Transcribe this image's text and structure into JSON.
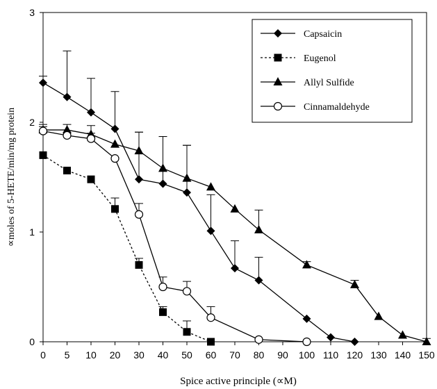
{
  "chart_data": {
    "type": "line",
    "title": "",
    "xlabel": "Spice active principle (∝M)",
    "ylabel": "∝moles of 5-HETE/min/mg protein",
    "xlim": [
      0,
      150
    ],
    "ylim": [
      0,
      3
    ],
    "x_ticks": [
      "0",
      "5",
      "10",
      "20",
      "30",
      "40",
      "50",
      "60",
      "70",
      "80",
      "90",
      "100",
      "110",
      "120",
      "130",
      "140",
      "150"
    ],
    "y_ticks": [
      "0",
      "1",
      "2",
      "3"
    ],
    "legend_position": "top-right",
    "grid": false,
    "series": [
      {
        "name": "Capsaicin",
        "marker": "diamond",
        "line": "solid",
        "points": [
          {
            "x": 0,
            "y": 2.36,
            "err": 0.06
          },
          {
            "x": 5,
            "y": 2.23,
            "err": 0.42
          },
          {
            "x": 10,
            "y": 2.09,
            "err": 0.31
          },
          {
            "x": 20,
            "y": 1.94,
            "err": 0.34
          },
          {
            "x": 30,
            "y": 1.48,
            "err": 0.43
          },
          {
            "x": 40,
            "y": 1.44,
            "err": 0.43
          },
          {
            "x": 50,
            "y": 1.36,
            "err": 0.43
          },
          {
            "x": 60,
            "y": 1.01,
            "err": 0.33
          },
          {
            "x": 70,
            "y": 0.67,
            "err": 0.25
          },
          {
            "x": 80,
            "y": 0.56,
            "err": 0.21
          },
          {
            "x": 100,
            "y": 0.21,
            "err": 0
          },
          {
            "x": 110,
            "y": 0.04,
            "err": 0
          },
          {
            "x": 120,
            "y": 0.0,
            "err": 0
          }
        ]
      },
      {
        "name": "Eugenol",
        "marker": "square",
        "line": "dotted",
        "points": [
          {
            "x": 0,
            "y": 1.7,
            "err": 0
          },
          {
            "x": 5,
            "y": 1.56,
            "err": 0
          },
          {
            "x": 10,
            "y": 1.48,
            "err": 0
          },
          {
            "x": 20,
            "y": 1.21,
            "err": 0.1
          },
          {
            "x": 30,
            "y": 0.7,
            "err": 0.06
          },
          {
            "x": 40,
            "y": 0.27,
            "err": 0.05
          },
          {
            "x": 50,
            "y": 0.09,
            "err": 0.1
          },
          {
            "x": 60,
            "y": 0.0,
            "err": 0
          }
        ]
      },
      {
        "name": "Allyl Sulfide",
        "marker": "triangle",
        "line": "solid",
        "points": [
          {
            "x": 0,
            "y": 1.93,
            "err": 0.05
          },
          {
            "x": 5,
            "y": 1.93,
            "err": 0.05
          },
          {
            "x": 10,
            "y": 1.89,
            "err": 0.08
          },
          {
            "x": 20,
            "y": 1.8,
            "err": 0
          },
          {
            "x": 30,
            "y": 1.74,
            "err": 0.17
          },
          {
            "x": 40,
            "y": 1.58,
            "err": 0.29
          },
          {
            "x": 50,
            "y": 1.49,
            "err": 0.3
          },
          {
            "x": 60,
            "y": 1.41,
            "err": 0
          },
          {
            "x": 70,
            "y": 1.21,
            "err": 0
          },
          {
            "x": 80,
            "y": 1.02,
            "err": 0.18
          },
          {
            "x": 100,
            "y": 0.7,
            "err": 0.03
          },
          {
            "x": 120,
            "y": 0.52,
            "err": 0.04
          },
          {
            "x": 130,
            "y": 0.23,
            "err": 0
          },
          {
            "x": 140,
            "y": 0.06,
            "err": 0
          },
          {
            "x": 150,
            "y": 0.0,
            "err": 0.03
          }
        ]
      },
      {
        "name": "Cinnamaldehyde",
        "marker": "circle",
        "line": "solid",
        "points": [
          {
            "x": 0,
            "y": 1.92,
            "err": 0.04
          },
          {
            "x": 5,
            "y": 1.88,
            "err": 0
          },
          {
            "x": 10,
            "y": 1.85,
            "err": 0.05
          },
          {
            "x": 20,
            "y": 1.67,
            "err": 0
          },
          {
            "x": 30,
            "y": 1.16,
            "err": 0.1
          },
          {
            "x": 40,
            "y": 0.5,
            "err": 0.09
          },
          {
            "x": 50,
            "y": 0.46,
            "err": 0.09
          },
          {
            "x": 60,
            "y": 0.22,
            "err": 0.1
          },
          {
            "x": 80,
            "y": 0.02,
            "err": 0
          },
          {
            "x": 100,
            "y": 0.0,
            "err": 0
          }
        ]
      }
    ]
  }
}
